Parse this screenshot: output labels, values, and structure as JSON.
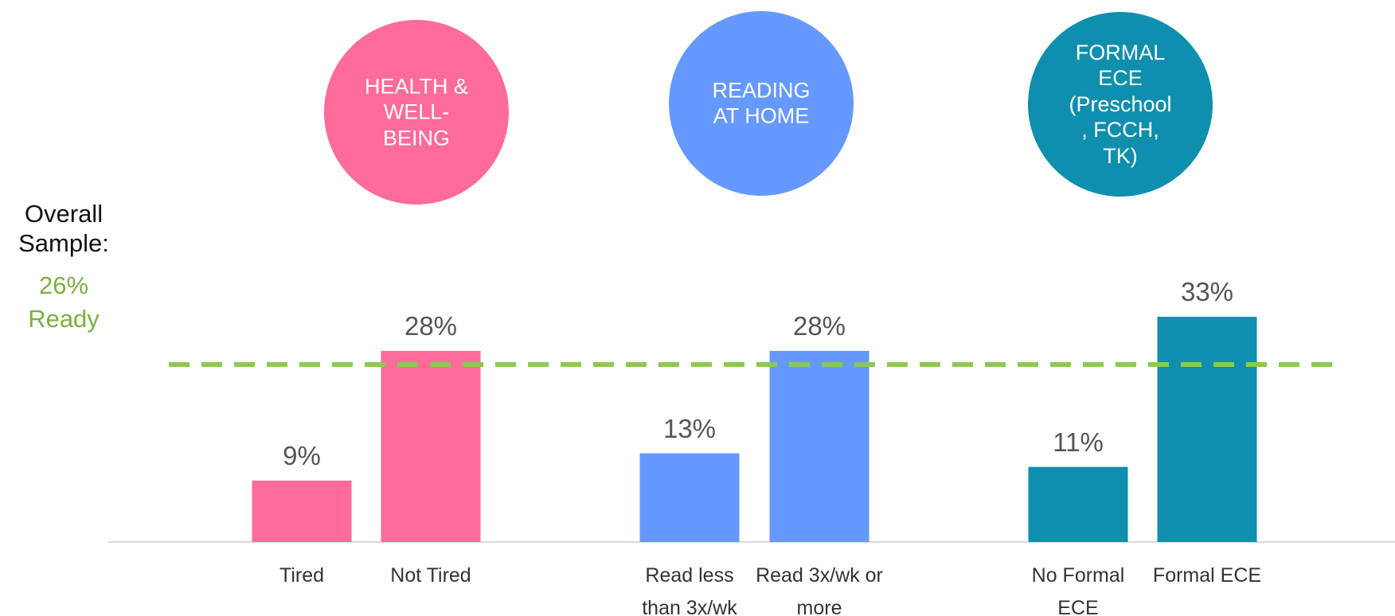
{
  "chart_data": {
    "type": "bar",
    "categories": [
      "Tired",
      "Not Tired",
      "Read less than 3x/wk",
      "Read 3x/wk or more",
      "No Formal ECE",
      "Formal ECE"
    ],
    "values": [
      9,
      28,
      13,
      28,
      11,
      33
    ],
    "value_labels": [
      "9%",
      "28%",
      "13%",
      "28%",
      "11%",
      "33%"
    ],
    "colors": [
      "#ff6b9a",
      "#ff6b9a",
      "#6699ff",
      "#6699ff",
      "#0e8fae",
      "#0e8fae"
    ],
    "groups": [
      {
        "label": "HEALTH & WELL-BEING",
        "color": "#ff6b9a"
      },
      {
        "label": "READING AT HOME",
        "color": "#6699ff"
      },
      {
        "label": "FORMAL ECE (Preschool, FCCH, TK)",
        "color": "#0e8fae"
      }
    ],
    "reference_line": {
      "value": 26,
      "value_label": "26%",
      "label": "Overall Sample:",
      "note": "Ready",
      "color": "#8cc94f"
    },
    "ylim": [
      0,
      40
    ]
  }
}
